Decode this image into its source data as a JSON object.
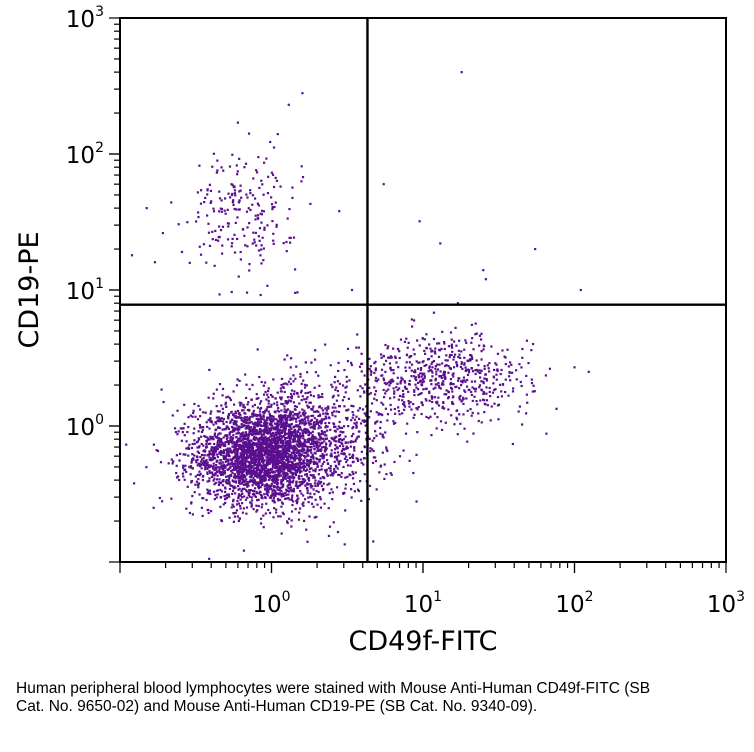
{
  "caption": "Human peripheral blood lymphocytes were stained with Mouse Anti-Human CD49f-FITC (SB Cat. No. 9650-02) and Mouse Anti-Human CD19-PE (SB Cat. No. 9340-09).",
  "chart_data": {
    "type": "scatter",
    "xlabel": "CD49f-FITC",
    "ylabel": "CD19-PE",
    "xscale": "log",
    "yscale": "log",
    "xlim": [
      0.1,
      1000
    ],
    "ylim": [
      0.1,
      1000
    ],
    "x_ticks": [
      {
        "base": "10",
        "exp": "0",
        "value": 1
      },
      {
        "base": "10",
        "exp": "1",
        "value": 10
      },
      {
        "base": "10",
        "exp": "2",
        "value": 100
      },
      {
        "base": "10",
        "exp": "3",
        "value": 1000
      }
    ],
    "y_ticks": [
      {
        "base": "10",
        "exp": "0",
        "value": 1
      },
      {
        "base": "10",
        "exp": "1",
        "value": 10
      },
      {
        "base": "10",
        "exp": "2",
        "value": 100
      },
      {
        "base": "10",
        "exp": "3",
        "value": 1000
      }
    ],
    "quadrant_gates": {
      "x": 4.3,
      "y": 7.8
    },
    "point_color": "#5a0f8e",
    "populations": [
      {
        "center": [
          0.85,
          0.6
        ],
        "spread_log": [
          0.22,
          0.18
        ],
        "count": 2600
      },
      {
        "center": [
          1.5,
          0.8
        ],
        "spread_log": [
          0.3,
          0.22
        ],
        "count": 1100
      },
      {
        "center": [
          13,
          2.2
        ],
        "spread_log": [
          0.3,
          0.16
        ],
        "count": 650
      },
      {
        "center": [
          0.65,
          38
        ],
        "spread_log": [
          0.18,
          0.22
        ],
        "count": 220
      }
    ],
    "points": [
      [
        18,
        400
      ],
      [
        1.6,
        280
      ],
      [
        1.3,
        230
      ],
      [
        0.6,
        170
      ],
      [
        1.1,
        140
      ],
      [
        5.5,
        60
      ],
      [
        9.5,
        32
      ],
      [
        13,
        22
      ],
      [
        25,
        14
      ],
      [
        55,
        20
      ],
      [
        110,
        10
      ],
      [
        2.8,
        38
      ],
      [
        0.15,
        40
      ],
      [
        0.12,
        18
      ],
      [
        0.17,
        16
      ],
      [
        26,
        12
      ],
      [
        17,
        8
      ],
      [
        3.4,
        10
      ]
    ]
  }
}
